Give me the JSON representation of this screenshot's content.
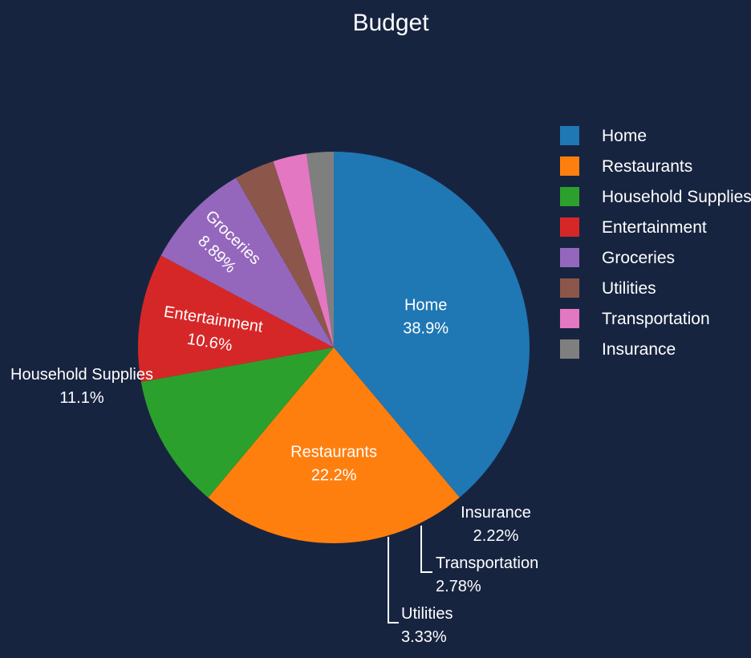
{
  "chart_data": {
    "type": "pie",
    "title": "Budget",
    "categories": [
      "Home",
      "Restaurants",
      "Household Supplies",
      "Entertainment",
      "Groceries",
      "Utilities",
      "Transportation",
      "Insurance"
    ],
    "values": [
      38.9,
      22.2,
      11.1,
      10.6,
      8.89,
      3.33,
      2.78,
      2.22
    ],
    "labels": [
      "38.9%",
      "22.2%",
      "11.1%",
      "10.6%",
      "8.89%",
      "3.33%",
      "2.78%",
      "2.22%"
    ],
    "colors": [
      "#1f77b4",
      "#ff7f0e",
      "#2ca02c",
      "#d62728",
      "#9467bd",
      "#8c564b",
      "#e377c2",
      "#7f7f7f"
    ],
    "legend_placement": "top-right",
    "direction": "clockwise",
    "start": "top"
  },
  "theme": {
    "background": "#172440",
    "text": "#ffffff",
    "connector": "#ffffff"
  }
}
